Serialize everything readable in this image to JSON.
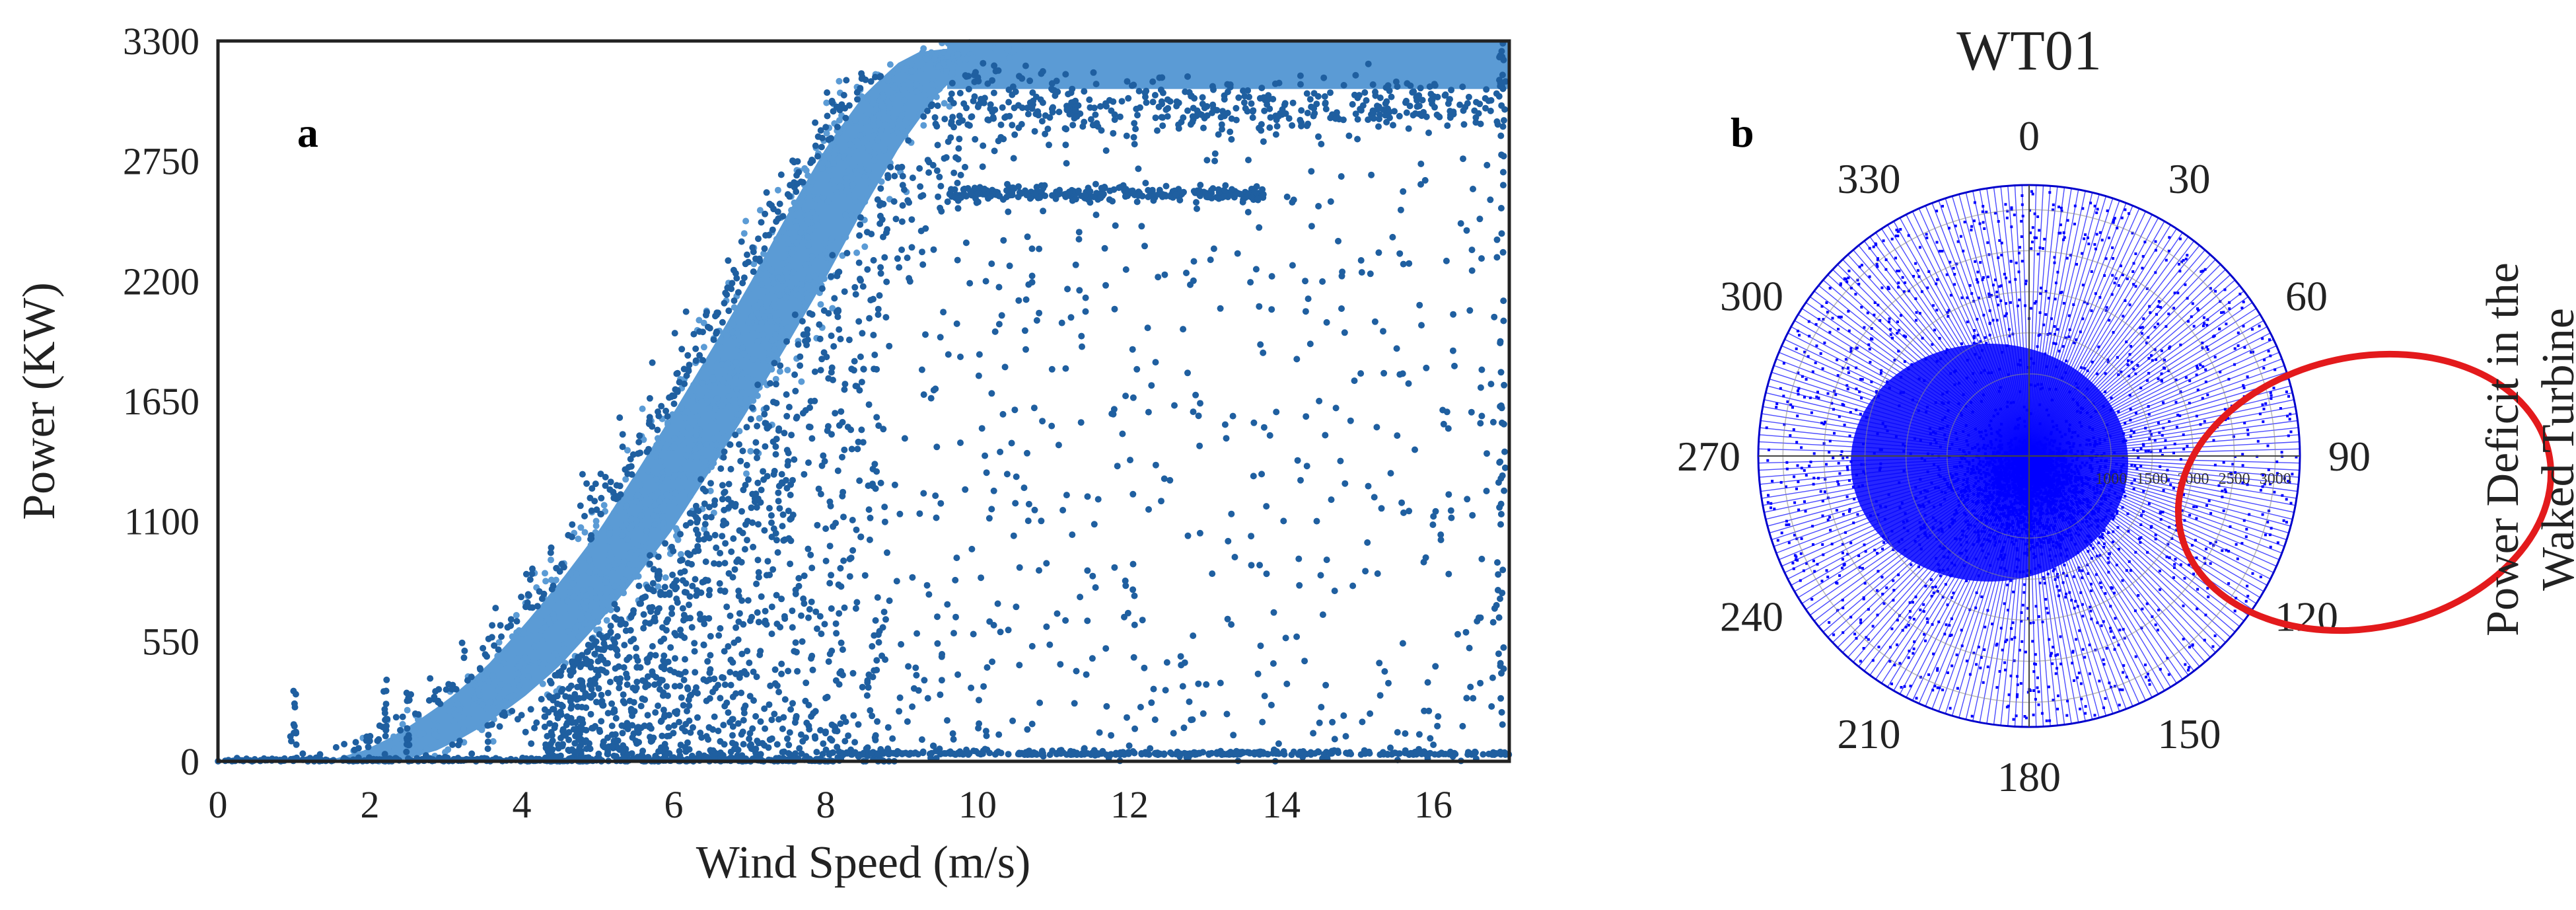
{
  "chart_data": [
    {
      "type": "scatter",
      "panel_label": "a",
      "xlabel": "Wind Speed (m/s)",
      "ylabel": "Power (KW)",
      "xlim": [
        0,
        17
      ],
      "ylim": [
        0,
        3300
      ],
      "x_ticks": [
        0,
        2,
        4,
        6,
        8,
        10,
        12,
        14,
        16
      ],
      "y_ticks": [
        0,
        550,
        1100,
        1650,
        2200,
        2750,
        3300
      ],
      "grid": false,
      "point_color": "#1f5fa0",
      "band_color": "#5b9bd5",
      "power_curve": [
        {
          "x": 0.0,
          "y": 0
        },
        {
          "x": 1.9,
          "y": 0
        },
        {
          "x": 2.5,
          "y": 60
        },
        {
          "x": 3.0,
          "y": 160
        },
        {
          "x": 3.5,
          "y": 280
        },
        {
          "x": 4.0,
          "y": 430
        },
        {
          "x": 4.5,
          "y": 620
        },
        {
          "x": 5.0,
          "y": 830
        },
        {
          "x": 5.5,
          "y": 1060
        },
        {
          "x": 6.0,
          "y": 1330
        },
        {
          "x": 6.5,
          "y": 1610
        },
        {
          "x": 7.0,
          "y": 1900
        },
        {
          "x": 7.5,
          "y": 2200
        },
        {
          "x": 8.0,
          "y": 2520
        },
        {
          "x": 8.5,
          "y": 2820
        },
        {
          "x": 9.0,
          "y": 3060
        },
        {
          "x": 9.5,
          "y": 3220
        },
        {
          "x": 10.0,
          "y": 3290
        },
        {
          "x": 11.0,
          "y": 3300
        },
        {
          "x": 17.0,
          "y": 3300
        }
      ],
      "curtailment_levels": [
        2600,
        30
      ]
    },
    {
      "type": "scatter",
      "subtype": "polar",
      "panel_label": "b",
      "title": "WT01",
      "ylabel": "Power Deficit in the Waked Turbine",
      "angle_ticks": [
        0,
        30,
        60,
        90,
        120,
        150,
        180,
        210,
        240,
        270,
        300,
        330
      ],
      "radial_ticks": [
        1000,
        1500,
        2000,
        2500,
        3000
      ],
      "rlim": [
        0,
        3300
      ],
      "point_color": "#0000ff",
      "highlight_sector_deg": [
        60,
        150
      ],
      "highlight_color": "#e31a1c"
    }
  ]
}
